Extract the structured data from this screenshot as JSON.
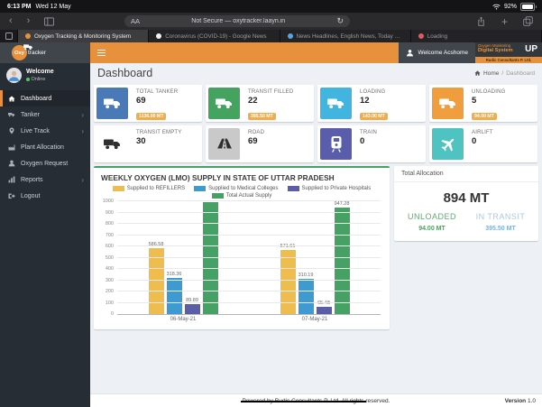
{
  "device": {
    "time": "6:13 PM",
    "date": "Wed 12 May",
    "battery": "92%"
  },
  "browser": {
    "reader_label": "AA",
    "url": "Not Secure — oxytracker.laayn.in",
    "tabs": [
      {
        "title": "Oxygen Tracking & Monitoring System",
        "favicon_color": "#e8913c",
        "active": true
      },
      {
        "title": "Coronavirus (COVID-19) - Google News",
        "favicon_color": "#f2f2f2",
        "active": false
      },
      {
        "title": "News Headlines, English News, Today Headli...",
        "favicon_color": "#53a6e0",
        "active": false
      },
      {
        "title": "Loading",
        "favicon_color": "#e05a64",
        "active": false
      }
    ]
  },
  "app": {
    "logo_bold": "Oxy",
    "logo_rest": "tracker",
    "welcome_user": "Welcome Acshome",
    "brand_line1": "Oxygen Monitoring",
    "brand_line2": "Digital System",
    "brand_abbr": "UP",
    "brand_company": "Rudic Consultants P. Ltd."
  },
  "sidebar": {
    "welcome": "Welcome",
    "status": "Online",
    "items": [
      {
        "label": "Dashboard",
        "icon": "home",
        "active": true,
        "chevron": false
      },
      {
        "label": "Tanker",
        "icon": "truck",
        "active": false,
        "chevron": true
      },
      {
        "label": "Live Track",
        "icon": "map-marker",
        "active": false,
        "chevron": true
      },
      {
        "label": "Plant Allocation",
        "icon": "industry",
        "active": false,
        "chevron": false
      },
      {
        "label": "Oxygen Request",
        "icon": "user",
        "active": false,
        "chevron": false
      },
      {
        "label": "Reports",
        "icon": "chart",
        "active": false,
        "chevron": true
      },
      {
        "label": "Logout",
        "icon": "sign-out",
        "active": false,
        "chevron": false
      }
    ]
  },
  "page": {
    "title": "Dashboard",
    "breadcrumb": {
      "home": "Home",
      "current": "Dashboard"
    }
  },
  "stats": [
    {
      "label": "TOTAL TANKER",
      "value": "69",
      "badge": "1136.00 MT",
      "icon": "truck",
      "icon_bg": "#4a79b8",
      "icon_fg": "#ffffff"
    },
    {
      "label": "TRANSIT FILLED",
      "value": "22",
      "badge": "395.50 MT",
      "icon": "truck",
      "icon_bg": "#43a35f",
      "icon_fg": "#ffffff"
    },
    {
      "label": "LOADING",
      "value": "12",
      "badge": "143.00 MT",
      "icon": "truck",
      "icon_bg": "#41b4df",
      "icon_fg": "#ffffff"
    },
    {
      "label": "UNLOADING",
      "value": "5",
      "badge": "94.00 MT",
      "icon": "truck",
      "icon_bg": "#f09d3e",
      "icon_fg": "#ffffff"
    },
    {
      "label": "TRANSIT EMPTY",
      "value": "30",
      "badge": null,
      "icon": "truck",
      "icon_bg": "#ffffff",
      "icon_fg": "#2f2f2f"
    },
    {
      "label": "ROAD",
      "value": "69",
      "badge": null,
      "icon": "road",
      "icon_bg": "#c9c9c9",
      "icon_fg": "#2f2f2f"
    },
    {
      "label": "TRAIN",
      "value": "0",
      "badge": null,
      "icon": "train",
      "icon_bg": "#5a5dab",
      "icon_fg": "#ffffff"
    },
    {
      "label": "AIRLIFT",
      "value": "0",
      "badge": null,
      "icon": "plane",
      "icon_bg": "#4fc2c2",
      "icon_fg": "#ffffff"
    }
  ],
  "chart_data": {
    "type": "bar",
    "title": "WEEKLY OXYGEN (LMO) SUPPLY IN STATE OF UTTAR PRADESH",
    "categories": [
      "06-May-21",
      "07-May-21"
    ],
    "series": [
      {
        "name": "Supplied to REFILLERS",
        "color": "#eebd4e",
        "values": [
          586.58,
          571.61
        ]
      },
      {
        "name": "Supplied to Medical Colleges",
        "color": "#3d9bd1",
        "values": [
          318.36,
          310.19
        ]
      },
      {
        "name": "Supplied to Private Hospitals",
        "color": "#5b5ea6",
        "values": [
          89.89,
          65.48
        ]
      },
      {
        "name": "Total Actual Supply",
        "color": "#45a164",
        "values": [
          994.83,
          947.28
        ],
        "label_hidden": [
          true,
          false
        ]
      }
    ],
    "ylim": [
      0,
      1000
    ],
    "ytick_step": 100,
    "grid": true,
    "legend_position": "top",
    "accent_border": "#45a164"
  },
  "allocation": {
    "title": "Total Allocation",
    "total": "894 MT",
    "unloaded_label": "UNLOADED",
    "unloaded_value": "94.00 MT",
    "transit_label": "IN TRANSIT",
    "transit_value": "395.50 MT"
  },
  "footer": {
    "powered_struck": "Powered by Rudic Consultants P. Ltd. All rights",
    "powered_rest": " reserved.",
    "version_label": "Version",
    "version_value": "1.0"
  }
}
